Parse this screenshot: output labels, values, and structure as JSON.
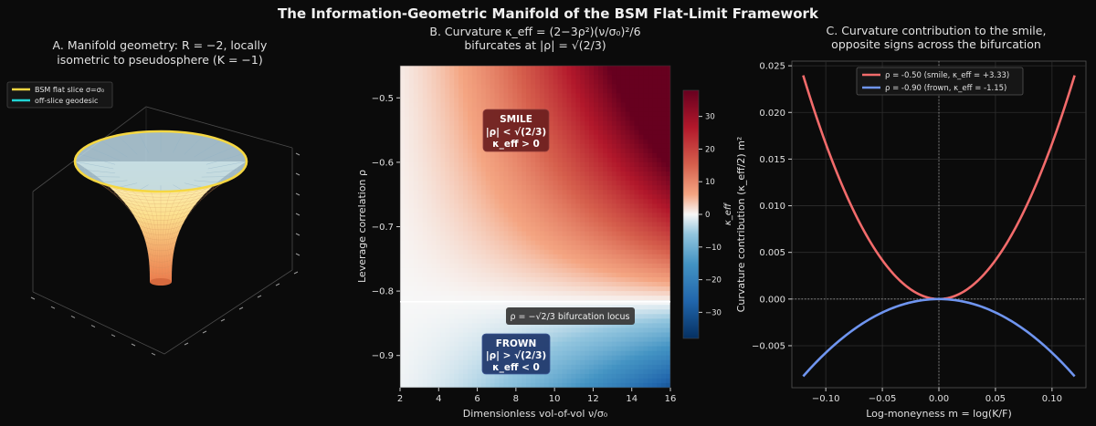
{
  "figure_title": "The Information-Geometric Manifold of the BSM Flat-Limit Framework",
  "panels": {
    "a": {
      "title_line1": "A. Manifold geometry: R = −2, locally",
      "title_line2": "isometric to pseudosphere (K = −1)",
      "legend": [
        "BSM flat slice σ=σ₀",
        "off-slice geodesic"
      ]
    },
    "b": {
      "title_line1": "B. Curvature κ_eff = (2−3ρ²)(ν/σ₀)²/6",
      "title_line2": "bifurcates at |ρ| = √(2/3)",
      "smile_box": [
        "SMILE",
        "|ρ| < √(2/3)",
        "κ_eff > 0"
      ],
      "frown_box": [
        "FROWN",
        "|ρ| > √(2/3)",
        "κ_eff < 0"
      ],
      "locus_label": "ρ = −√2/3  bifurcation locus",
      "colorbar_label": "κ_eff",
      "colorbar_ticks": [
        30,
        20,
        10,
        0,
        -10,
        -20,
        -30
      ]
    },
    "c": {
      "title_line1": "C. Curvature contribution to the smile,",
      "title_line2": "opposite signs across the bifurcation"
    }
  },
  "chart_data": [
    {
      "type": "surface3d",
      "title": "A. Manifold geometry: R = −2, locally isometric to pseudosphere (K = −1)",
      "series": [
        {
          "name": "BSM flat slice σ=σ₀",
          "color": "#f5d742"
        },
        {
          "name": "off-slice geodesic",
          "color": "#21d4d4"
        }
      ]
    },
    {
      "type": "heatmap",
      "title": "B. Curvature κ_eff = (2−3ρ²)(ν/σ₀)²/6 bifurcates at |ρ| = √(2/3)",
      "xlabel": "Dimensionless vol-of-vol  ν/σ₀",
      "ylabel": "Leverage correlation  ρ",
      "xlim": [
        2,
        16
      ],
      "ylim": [
        -0.95,
        -0.45
      ],
      "xticks": [
        2,
        4,
        6,
        8,
        10,
        12,
        14,
        16
      ],
      "yticks": [
        -0.5,
        -0.6,
        -0.7,
        -0.8,
        -0.9
      ],
      "color_range": [
        -38,
        38
      ],
      "colormap": "RdBu_r",
      "bifurcation_rho": -0.8165
    },
    {
      "type": "line",
      "title": "C. Curvature contribution to the smile, opposite signs across the bifurcation",
      "xlabel": "Log-moneyness  m = log(K/F)",
      "ylabel": "Curvature contribution  (κ_eff/2) m²",
      "xlim": [
        -0.13,
        0.13
      ],
      "ylim": [
        -0.0095,
        0.0255
      ],
      "xticks": [
        -0.1,
        -0.05,
        0,
        0.05,
        0.1
      ],
      "xtick_labels": [
        "−0.10",
        "−0.05",
        "0.00",
        "0.05",
        "0.10"
      ],
      "yticks": [
        -0.005,
        0,
        0.005,
        0.01,
        0.015,
        0.02,
        0.025
      ],
      "ytick_labels": [
        "−0.005",
        "0.000",
        "0.005",
        "0.010",
        "0.015",
        "0.020",
        "0.025"
      ],
      "grid": true,
      "legend_position": "top-center",
      "x": [
        -0.12,
        -0.1,
        -0.08,
        -0.06,
        -0.04,
        -0.02,
        0,
        0.02,
        0.04,
        0.06,
        0.08,
        0.1,
        0.12
      ],
      "series": [
        {
          "name": "ρ = -0.50  (smile, κ_eff = +3.33)",
          "color": "#f26b6b",
          "kappa": 3.33,
          "values": [
            0.024,
            0.0167,
            0.0107,
            0.006,
            0.0027,
            0.0007,
            0,
            0.0007,
            0.0027,
            0.006,
            0.0107,
            0.0167,
            0.024
          ]
        },
        {
          "name": "ρ = -0.90  (frown, κ_eff = -1.15)",
          "color": "#6f95f0",
          "kappa": -1.15,
          "values": [
            -0.0083,
            -0.0058,
            -0.0037,
            -0.0021,
            -0.0009,
            -0.0002,
            0,
            -0.0002,
            -0.0009,
            -0.0021,
            -0.0037,
            -0.0058,
            -0.0083
          ]
        }
      ]
    }
  ]
}
